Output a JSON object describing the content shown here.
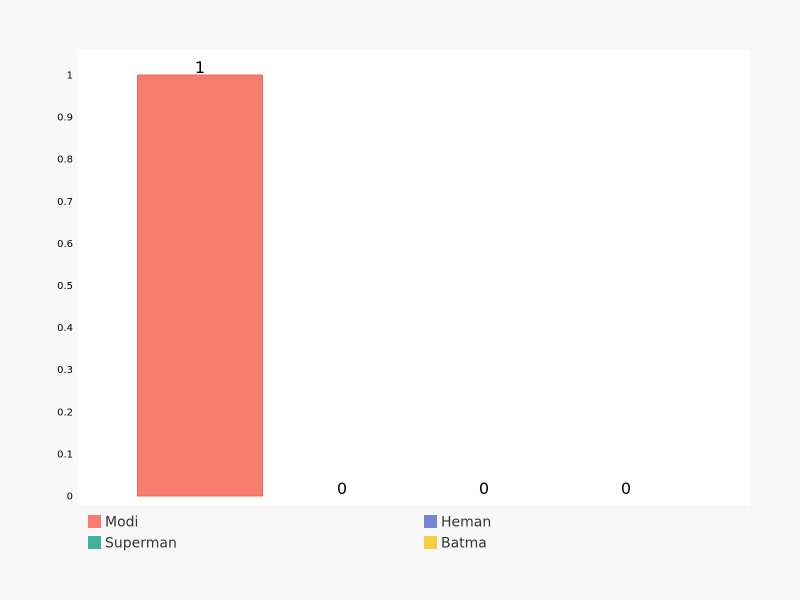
{
  "chart_data": {
    "type": "bar",
    "title": "",
    "xlabel": "",
    "ylabel": "",
    "ylim": [
      0,
      1
    ],
    "yticks": [
      "0",
      "0.1",
      "0.2",
      "0.3",
      "0.4",
      "0.5",
      "0.6",
      "0.7",
      "0.8",
      "0.9",
      "1"
    ],
    "grid": false,
    "legend_position": "bottom",
    "series": [
      {
        "name": "Modi",
        "value": 1,
        "label": "1",
        "color": "#f77b6f"
      },
      {
        "name": "Superman",
        "value": 0,
        "label": "0",
        "color": "#3fb0a2"
      },
      {
        "name": "Heman",
        "value": 0,
        "label": "0",
        "color": "#7486d3"
      },
      {
        "name": "Batma",
        "value": 0,
        "label": "0",
        "color": "#f8cd3f"
      }
    ]
  }
}
